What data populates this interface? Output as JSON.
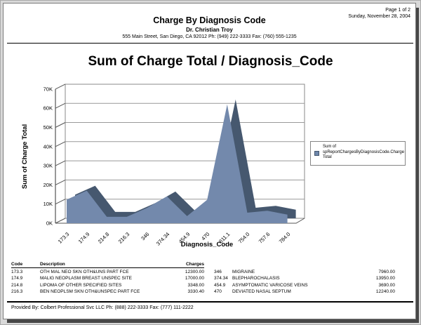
{
  "page": {
    "page_number": "Page 1 of 2",
    "date": "Sunday, November 28, 2004"
  },
  "header": {
    "title": "Charge By Diagnosis Code",
    "doctor": "Dr. Christian Troy",
    "address": "555 Main Street, San Diego, CA 92012 Ph: (949) 222-3333 Fax: (760) 555-1235"
  },
  "report_title": "Sum of Charge Total / Diagnosis_Code",
  "chart_data": {
    "type": "area",
    "style": "3d",
    "title": "Sum of Charge Total / Diagnosis_Code",
    "xlabel": "Diagnosis_Code",
    "ylabel": "Sum of Charge Total",
    "categories": [
      "173.3",
      "174.9",
      "214.8",
      "216.3",
      "346",
      "374.34",
      "454.9",
      "470",
      "611.1",
      "754.0",
      "757.6",
      "784.0"
    ],
    "values": [
      12300,
      17000,
      3348,
      3330.4,
      7960,
      13950,
      3690,
      12240,
      62000,
      5500,
      6500,
      4500
    ],
    "ylim": [
      0,
      70000
    ],
    "ytick_labels": [
      "0K",
      "10K",
      "20K",
      "30K",
      "40K",
      "50K",
      "60K",
      "70K"
    ],
    "grid": true,
    "legend": {
      "position": "right",
      "label": "Sum of spReportChargesByDiagnosisCode.Charge Total",
      "lines": [
        "Sum of",
        "spReportChargesByDiagnosisCode.Charge",
        "Total"
      ]
    },
    "colors": {
      "area_front": "#7389ac",
      "area_side": "#46586f",
      "gridline": "#999999",
      "frame": "#555555"
    }
  },
  "table": {
    "headers": [
      "Code",
      "Description",
      "Charges"
    ],
    "rows": [
      [
        "173.3",
        "OTH MAL NEO SKN OTH&UNS PART FCE",
        "12300.00",
        "346",
        "MIGRAINE",
        "7960.00"
      ],
      [
        "174.9",
        "MALIG NEOPLASM BREAST UNSPEC SITE",
        "17000.00",
        "374.34",
        "BLEPHAROCHALASIS",
        "13950.00"
      ],
      [
        "214.8",
        "LIPOMA OF OTHER SPECIFIED SITES",
        "3348.00",
        "454.9",
        "ASYMPTOMATIC VARICOSE VEINS",
        "3690.00"
      ],
      [
        "216.3",
        "BEN NEOPLSM SKN OTH&UNSPEC PART FCE",
        "3330.40",
        "470",
        "DEVIATED NASAL SEPTUM",
        "12240.00"
      ]
    ]
  },
  "footer": {
    "provided_by": "Provided By: Colbert Professional Svc LLC Ph: (888) 222-3333 Fax: (777) 111-2222"
  }
}
